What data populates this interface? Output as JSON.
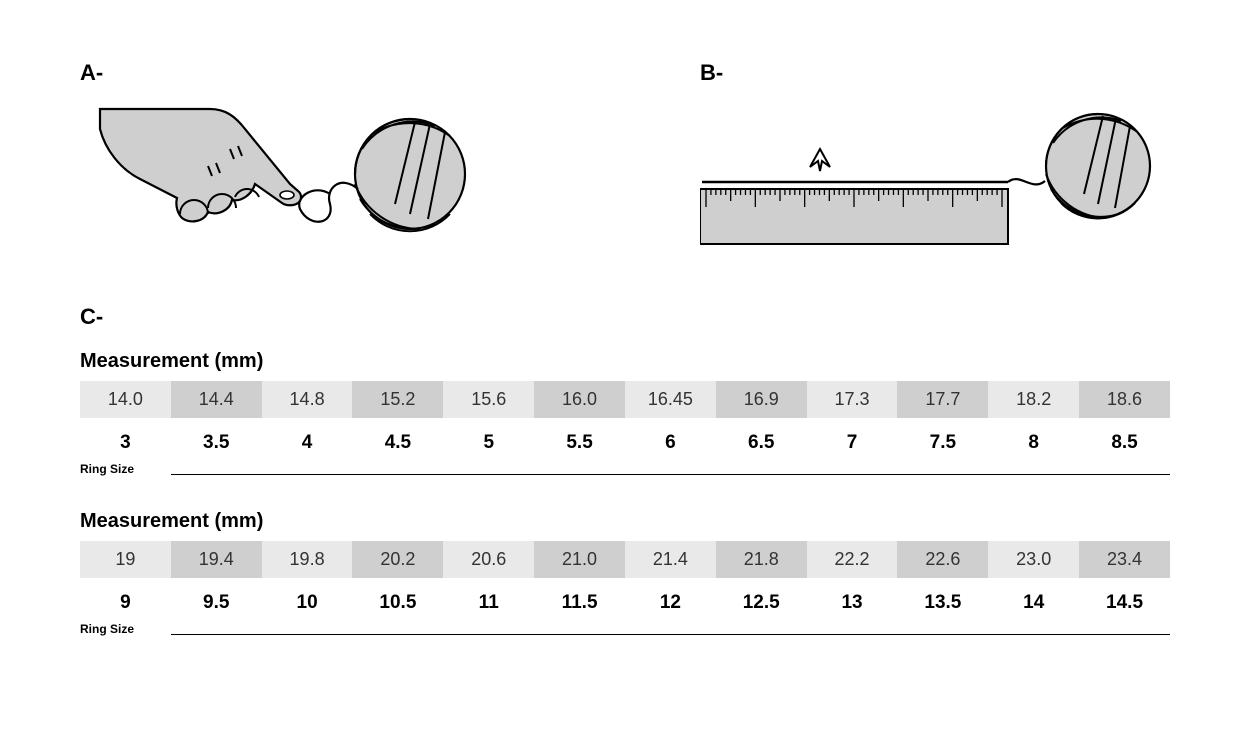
{
  "panelA": {
    "label": "A-"
  },
  "panelB": {
    "label": "B-"
  },
  "panelC": {
    "label": "C-"
  },
  "tables": [
    {
      "title": "Measurement (mm)",
      "ringSizeLabel": "Ring Size",
      "measurements": [
        "14.0",
        "14.4",
        "14.8",
        "15.2",
        "15.6",
        "16.0",
        "16.45",
        "16.9",
        "17.3",
        "17.7",
        "18.2",
        "18.6"
      ],
      "sizes": [
        "3",
        "3.5",
        "4",
        "4.5",
        "5",
        "5.5",
        "6",
        "6.5",
        "7",
        "7.5",
        "8",
        "8.5"
      ]
    },
    {
      "title": "Measurement (mm)",
      "ringSizeLabel": "Ring Size",
      "measurements": [
        "19",
        "19.4",
        "19.8",
        "20.2",
        "20.6",
        "21.0",
        "21.4",
        "21.8",
        "22.2",
        "22.6",
        "23.0",
        "23.4"
      ],
      "sizes": [
        "9",
        "9.5",
        "10",
        "10.5",
        "11",
        "11.5",
        "12",
        "12.5",
        "13",
        "13.5",
        "14",
        "14.5"
      ]
    }
  ],
  "colors": {
    "cellLight": "#e9e9e9",
    "cellDark": "#cfcfcf",
    "illustrationFill": "#cfcfcf",
    "stroke": "#000000"
  },
  "style": {
    "labelFontSize": 22,
    "tableTitleFontSize": 20,
    "measFontSize": 18,
    "sizeFontSize": 19,
    "ringSizeLabelFontSize": 12
  }
}
